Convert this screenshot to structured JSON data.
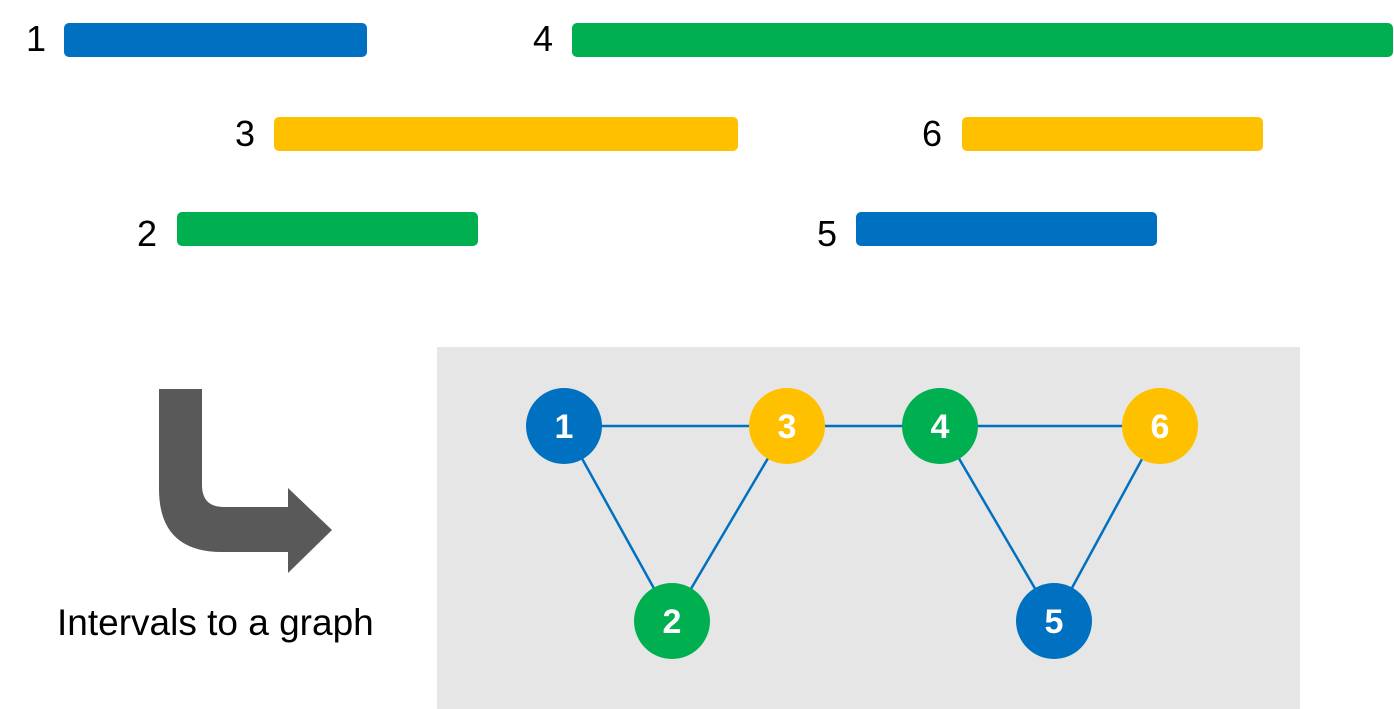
{
  "colors": {
    "blue": "#0070c0",
    "green": "#00b050",
    "yellow": "#ffc000",
    "edge": "#0070c0",
    "panel": "#e6e6e6",
    "arrow": "#595959",
    "node_text": "#ffffff"
  },
  "intervals": [
    {
      "id": "1",
      "label": "1",
      "color": "blue"
    },
    {
      "id": "2",
      "label": "2",
      "color": "green"
    },
    {
      "id": "3",
      "label": "3",
      "color": "yellow"
    },
    {
      "id": "4",
      "label": "4",
      "color": "green"
    },
    {
      "id": "5",
      "label": "5",
      "color": "blue"
    },
    {
      "id": "6",
      "label": "6",
      "color": "yellow"
    }
  ],
  "caption": "Intervals to a graph",
  "graph": {
    "nodes": [
      {
        "id": "1",
        "label": "1",
        "color": "blue"
      },
      {
        "id": "2",
        "label": "2",
        "color": "green"
      },
      {
        "id": "3",
        "label": "3",
        "color": "yellow"
      },
      {
        "id": "4",
        "label": "4",
        "color": "green"
      },
      {
        "id": "5",
        "label": "5",
        "color": "blue"
      },
      {
        "id": "6",
        "label": "6",
        "color": "yellow"
      }
    ],
    "edges": [
      [
        "1",
        "3"
      ],
      [
        "1",
        "2"
      ],
      [
        "2",
        "3"
      ],
      [
        "3",
        "4"
      ],
      [
        "4",
        "6"
      ],
      [
        "4",
        "5"
      ],
      [
        "5",
        "6"
      ]
    ]
  },
  "icons": {
    "arrow": "curved-turn-right-arrow-icon"
  }
}
